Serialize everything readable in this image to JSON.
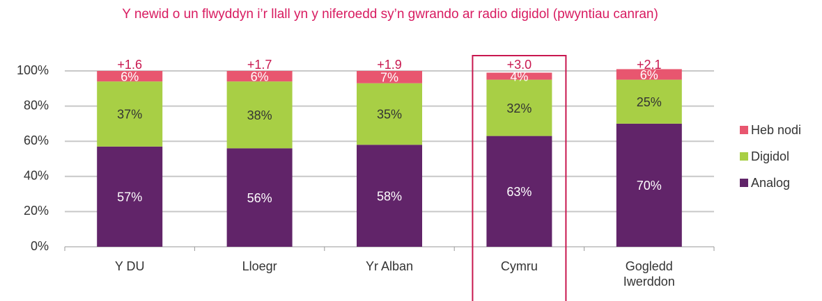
{
  "chart_data": {
    "type": "stacked_bar",
    "title": "Y newid o un flwyddyn i’r llall yn y niferoedd sy’n gwrando ar radio digidol (pwyntiau canran)",
    "categories": [
      "Y DU",
      "Lloegr",
      "Yr Alban",
      "Cymru",
      "Gogledd Iwerddon"
    ],
    "series": [
      {
        "name": "Analog",
        "color": "#612469",
        "values": [
          57,
          56,
          58,
          63,
          70
        ],
        "value_labels": [
          "57%",
          "56%",
          "58%",
          "63%",
          "70%"
        ],
        "label_color": "#ffffff"
      },
      {
        "name": "Digidol",
        "color": "#a8cf45",
        "values": [
          37,
          38,
          35,
          32,
          25
        ],
        "value_labels": [
          "37%",
          "38%",
          "35%",
          "32%",
          "25%"
        ],
        "label_color": "#333333"
      },
      {
        "name": "Heb nodi",
        "color": "#e8566f",
        "values": [
          6,
          6,
          7,
          4,
          6
        ],
        "value_labels": [
          "6%",
          "6%",
          "7%",
          "4%",
          "6%"
        ],
        "label_color": "#ffffff"
      }
    ],
    "annotations": {
      "values": [
        1.6,
        1.7,
        1.9,
        3.0,
        2.1
      ],
      "value_labels": [
        "+1.6",
        "+1.7",
        "+1.9",
        "+3.0",
        "+2.1"
      ],
      "color": "#c8174f"
    },
    "highlight_index": 3,
    "highlight_color": "#c8174f",
    "ylim": [
      0,
      100
    ],
    "yticks": [
      {
        "value": 0,
        "label": "0%"
      },
      {
        "value": 20,
        "label": "20%"
      },
      {
        "value": 40,
        "label": "40%"
      },
      {
        "value": 60,
        "label": "60%"
      },
      {
        "value": 80,
        "label": "80%"
      },
      {
        "value": 100,
        "label": "100%"
      }
    ],
    "grid": true,
    "legend": "right"
  }
}
